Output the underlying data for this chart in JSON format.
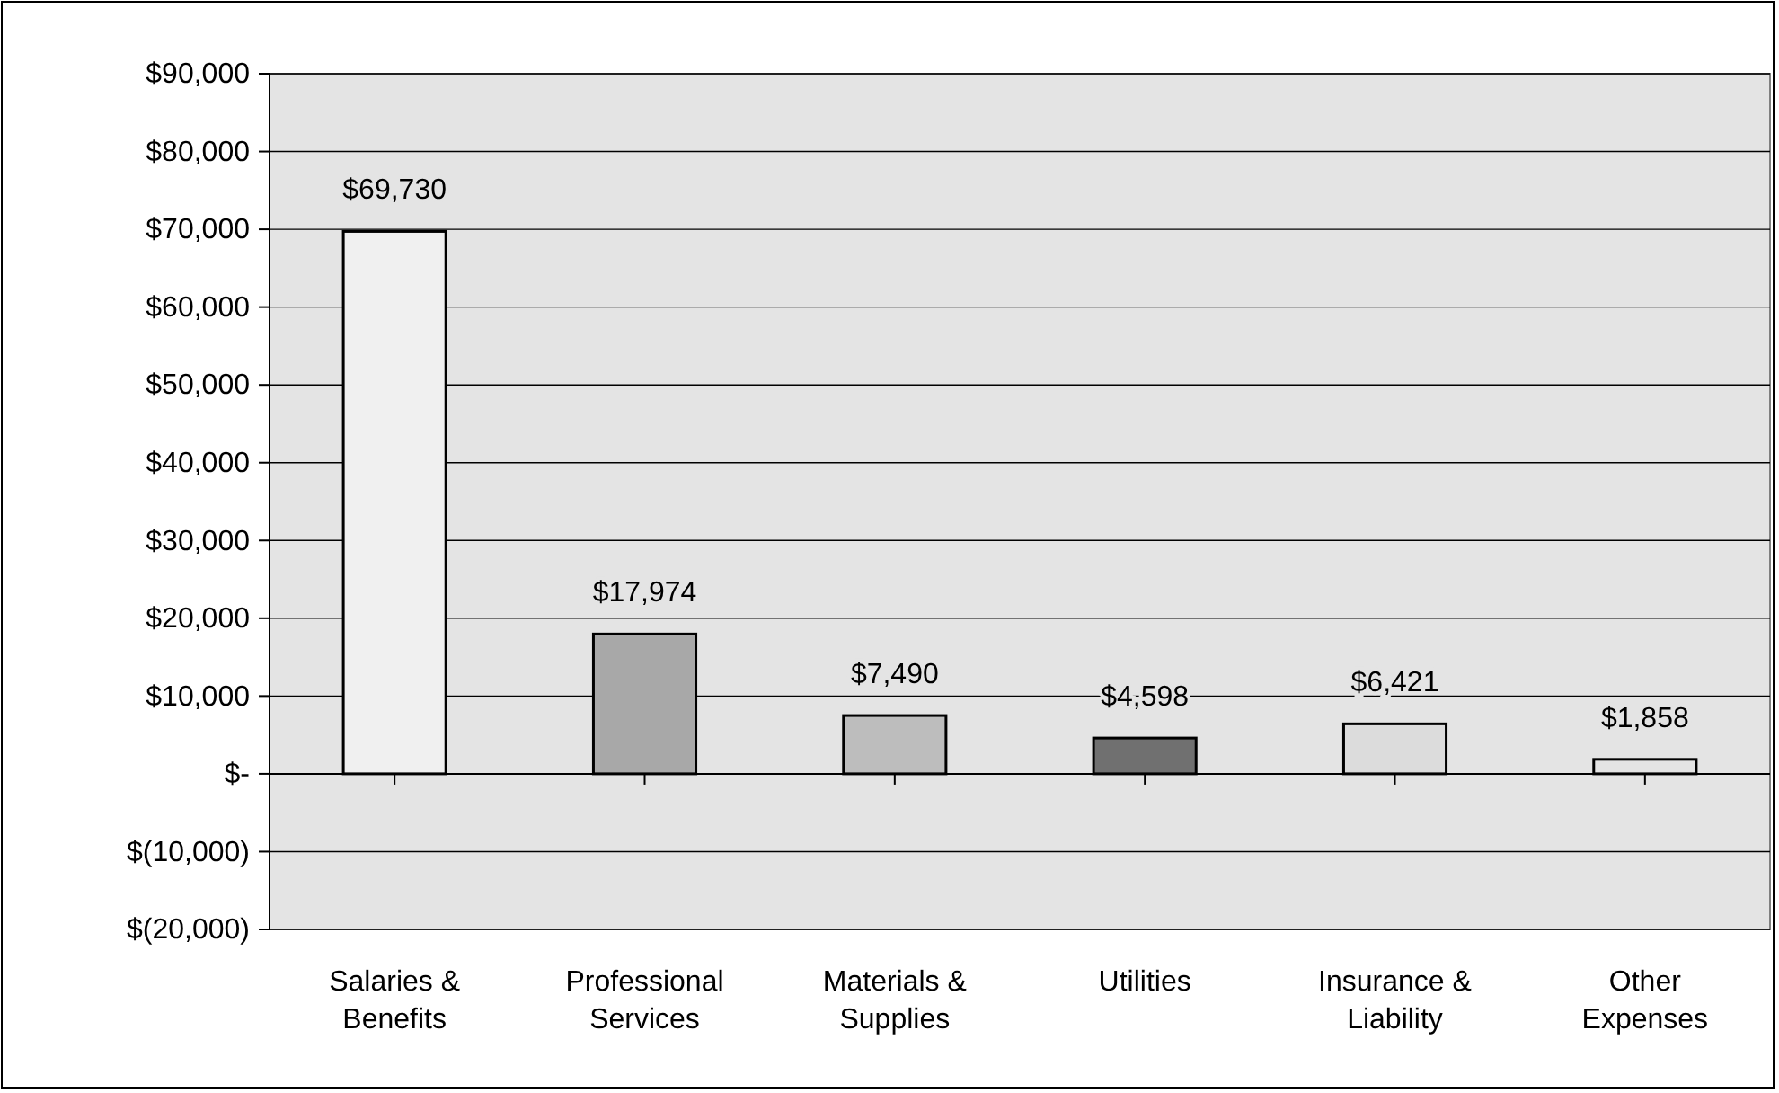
{
  "chart_data": {
    "type": "bar",
    "categories": [
      "Salaries & Benefits",
      "Professional Services",
      "Materials & Supplies",
      "Utilities",
      "Insurance & Liability",
      "Other Expenses"
    ],
    "values": [
      69730,
      17974,
      7490,
      4598,
      6421,
      1858
    ],
    "value_labels": [
      "$69,730",
      "$17,974",
      "$7,490",
      "$4,598",
      "$6,421",
      "$1,858"
    ],
    "colors": [
      "#f0f0f0",
      "#a8a8a8",
      "#bdbdbd",
      "#707070",
      "#dcdcdc",
      "#e4e4e4"
    ],
    "ylim": [
      -20000,
      90000
    ],
    "yticks": [
      {
        "value": -20000,
        "label": "$(20,000)"
      },
      {
        "value": -10000,
        "label": "$(10,000)"
      },
      {
        "value": 0,
        "label": "$-"
      },
      {
        "value": 10000,
        "label": "$10,000"
      },
      {
        "value": 20000,
        "label": "$20,000"
      },
      {
        "value": 30000,
        "label": "$30,000"
      },
      {
        "value": 40000,
        "label": "$40,000"
      },
      {
        "value": 50000,
        "label": "$50,000"
      },
      {
        "value": 60000,
        "label": "$60,000"
      },
      {
        "value": 70000,
        "label": "$70,000"
      },
      {
        "value": 80000,
        "label": "$80,000"
      },
      {
        "value": 90000,
        "label": "$90,000"
      }
    ],
    "grid": "y"
  }
}
